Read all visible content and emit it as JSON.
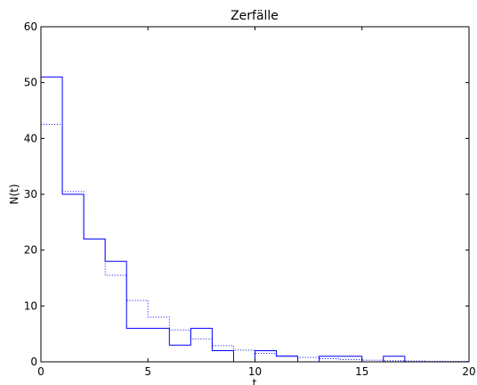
{
  "chart_data": {
    "type": "line",
    "title": "Zerfälle",
    "xlabel": "t",
    "ylabel": "N(t)",
    "xlim": [
      0,
      20
    ],
    "ylim": [
      0,
      60
    ],
    "xticks": [
      "0",
      "5",
      "10",
      "15",
      "20"
    ],
    "yticks": [
      "0",
      "10",
      "20",
      "30",
      "40",
      "50",
      "60"
    ],
    "grid": false,
    "series": [
      {
        "style": "solid",
        "color": "#0000ff",
        "drawstyle": "steps-post",
        "x": [
          0,
          1,
          2,
          3,
          4,
          5,
          6,
          7,
          8,
          9,
          10,
          11,
          12,
          13,
          14,
          15,
          16,
          17,
          18,
          19
        ],
        "y": [
          51,
          30,
          22,
          18,
          6,
          6,
          3,
          6,
          2,
          0,
          2,
          1,
          0,
          1,
          1,
          0,
          1,
          0,
          0,
          0
        ]
      },
      {
        "style": "dotted",
        "color": "#0000ff",
        "drawstyle": "steps-post",
        "x": [
          0,
          1,
          2,
          3,
          4,
          5,
          6,
          7,
          8,
          9,
          10,
          11,
          12,
          13,
          14,
          15,
          16,
          17,
          18,
          19
        ],
        "y": [
          42.5,
          30.5,
          22,
          15.5,
          11,
          8,
          5.7,
          4.1,
          2.9,
          2.1,
          1.5,
          1.1,
          0.8,
          0.55,
          0.4,
          0.3,
          0.2,
          0.15,
          0.1,
          0.08
        ]
      }
    ]
  }
}
